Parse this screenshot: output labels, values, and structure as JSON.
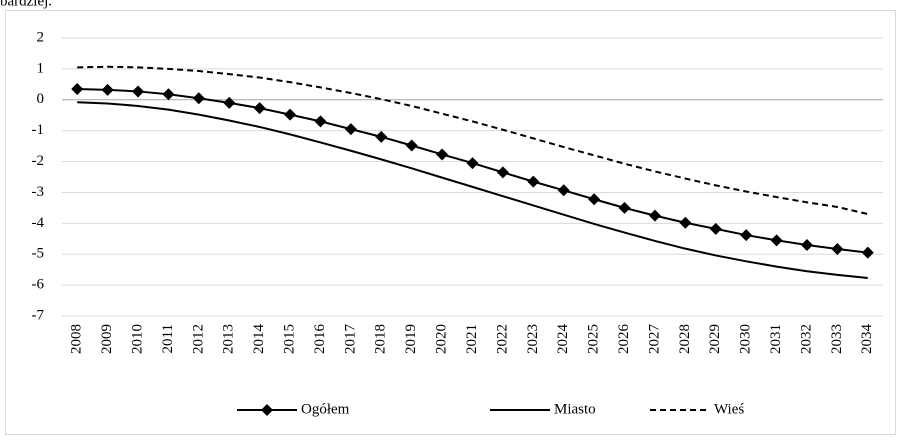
{
  "text_above": "bardziej.",
  "chart_data": {
    "type": "line",
    "categories": [
      "2008",
      "2009",
      "2010",
      "2011",
      "2012",
      "2013",
      "2014",
      "2015",
      "2016",
      "2017",
      "2018",
      "2019",
      "2020",
      "2021",
      "2022",
      "2023",
      "2024",
      "2025",
      "2026",
      "2027",
      "2028",
      "2029",
      "2030",
      "2031",
      "2032",
      "2033",
      "2034"
    ],
    "series": [
      {
        "name": "Ogółem",
        "color": "#000000",
        "marker": "diamond",
        "dash": "solid",
        "values": [
          0.35,
          0.32,
          0.27,
          0.18,
          0.05,
          -0.1,
          -0.27,
          -0.48,
          -0.7,
          -0.95,
          -1.2,
          -1.48,
          -1.77,
          -2.05,
          -2.35,
          -2.65,
          -2.93,
          -3.22,
          -3.5,
          -3.75,
          -3.98,
          -4.18,
          -4.38,
          -4.55,
          -4.7,
          -4.83,
          -4.95
        ]
      },
      {
        "name": "Miasto",
        "color": "#000000",
        "marker": "none",
        "dash": "solid",
        "values": [
          -0.08,
          -0.12,
          -0.2,
          -0.32,
          -0.48,
          -0.67,
          -0.88,
          -1.12,
          -1.38,
          -1.65,
          -1.93,
          -2.22,
          -2.52,
          -2.82,
          -3.12,
          -3.42,
          -3.72,
          -4.02,
          -4.3,
          -4.57,
          -4.82,
          -5.04,
          -5.23,
          -5.4,
          -5.55,
          -5.67,
          -5.77
        ]
      },
      {
        "name": "Wieś",
        "color": "#000000",
        "marker": "none",
        "dash": "dashed",
        "values": [
          1.05,
          1.07,
          1.05,
          1.0,
          0.93,
          0.83,
          0.72,
          0.57,
          0.4,
          0.22,
          0.02,
          -0.2,
          -0.45,
          -0.7,
          -0.97,
          -1.25,
          -1.53,
          -1.8,
          -2.07,
          -2.32,
          -2.55,
          -2.77,
          -2.97,
          -3.15,
          -3.32,
          -3.47,
          -3.7
        ]
      }
    ],
    "ylim": [
      -7,
      2
    ],
    "yticks": [
      2,
      1,
      0,
      -1,
      -2,
      -3,
      -4,
      -5,
      -6,
      -7
    ],
    "grid": true,
    "legend": "bottom"
  }
}
